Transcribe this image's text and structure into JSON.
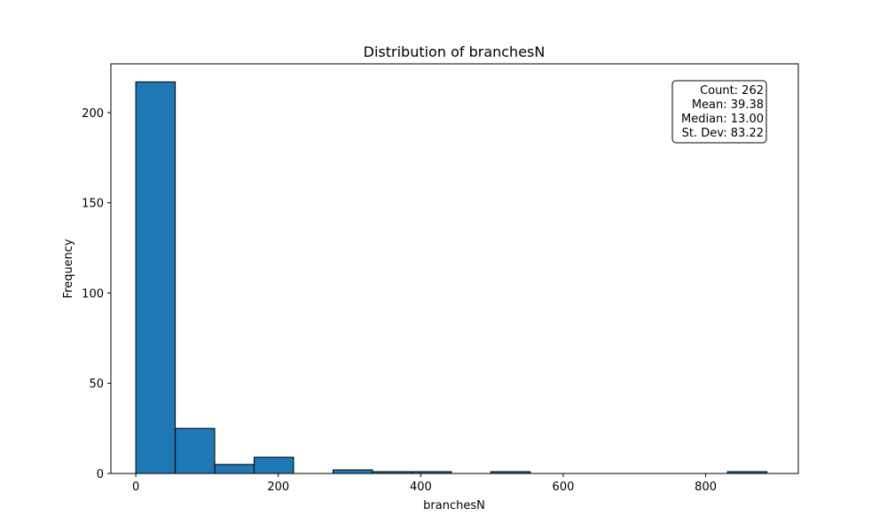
{
  "chart_data": {
    "type": "bar",
    "title": "Distribution of branchesN",
    "xlabel": "branchesN",
    "ylabel": "Frequency",
    "xlim": [
      -35,
      930
    ],
    "ylim": [
      0,
      227
    ],
    "bin_edges": [
      0,
      55.4,
      110.8,
      166.1,
      221.5,
      276.9,
      332.3,
      387.6,
      443.0,
      498.4,
      553.8,
      609.1,
      664.5,
      719.9,
      775.3,
      830.6,
      886.0
    ],
    "counts": [
      217,
      25,
      5,
      9,
      0,
      2,
      1,
      1,
      0,
      1,
      0,
      0,
      0,
      0,
      0,
      1
    ],
    "x_ticks": [
      0,
      200,
      400,
      600,
      800
    ],
    "y_ticks": [
      0,
      50,
      100,
      150,
      200
    ],
    "bar_color": "#1f77b4",
    "edge_color": "#000000",
    "grid": false,
    "stats_box": {
      "placement": "top-right",
      "lines": [
        "Count: 262",
        "Mean: 39.38",
        "Median: 13.00",
        "St. Dev: 83.22"
      ]
    }
  }
}
